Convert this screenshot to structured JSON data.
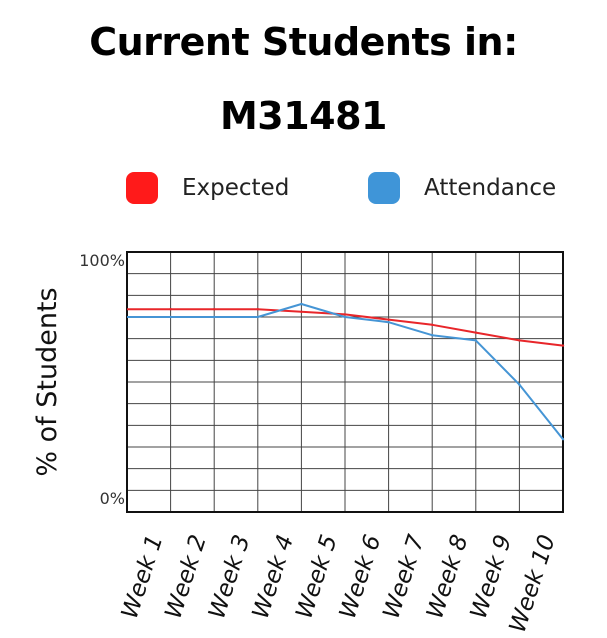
{
  "page": {
    "title_line1": "Current Students in:",
    "title_line2": "M31481"
  },
  "chart_data": {
    "type": "line",
    "title": "Current Students in: M31481",
    "xlabel": "",
    "ylabel": "% of Students",
    "ylim": [
      0,
      100
    ],
    "y_tick_labels": {
      "top": "100%",
      "bottom": "0%"
    },
    "categories": [
      "Week 1",
      "Week 2",
      "Week 3",
      "Week 4",
      "Week 5",
      "Week 6",
      "Week 7",
      "Week 8",
      "Week 9",
      "Week 10"
    ],
    "grid": true,
    "legend_position": "top",
    "series": [
      {
        "name": "Expected",
        "color": "#e8262a",
        "values": [
          78,
          78,
          78,
          77,
          76,
          74,
          72,
          69,
          66,
          64
        ]
      },
      {
        "name": "Attendance",
        "color": "#4595d5",
        "values": [
          75,
          75,
          75,
          80,
          75,
          73,
          68,
          66,
          49,
          28
        ]
      }
    ],
    "legend_colors": {
      "Expected": "#ff1a1a",
      "Attendance": "#3f95d8"
    }
  }
}
